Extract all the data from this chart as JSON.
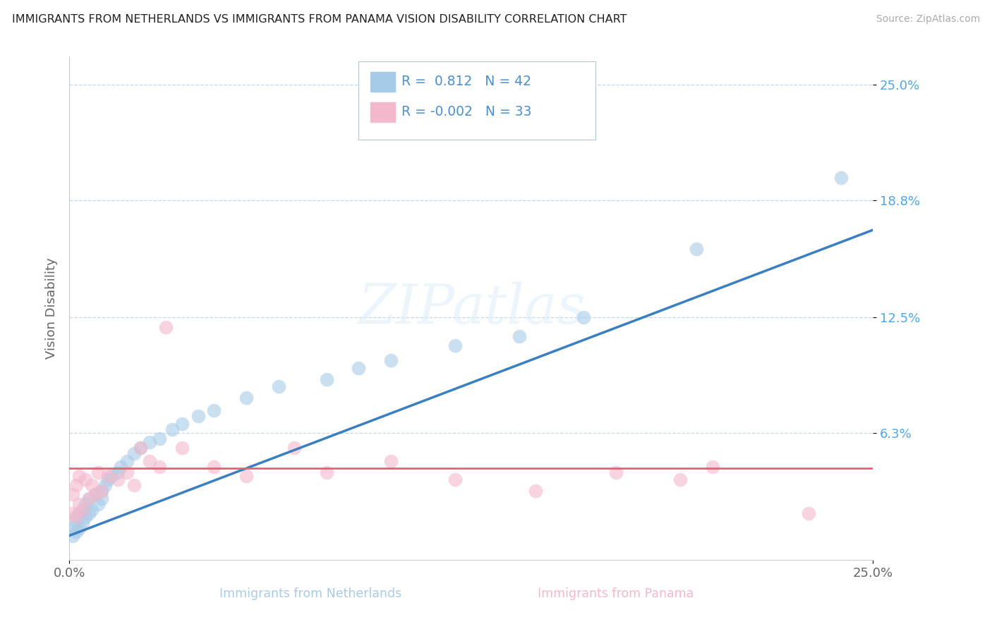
{
  "title": "IMMIGRANTS FROM NETHERLANDS VS IMMIGRANTS FROM PANAMA VISION DISABILITY CORRELATION CHART",
  "source": "Source: ZipAtlas.com",
  "label_netherlands": "Immigrants from Netherlands",
  "label_panama": "Immigrants from Panama",
  "ylabel": "Vision Disability",
  "r_netherlands": 0.812,
  "n_netherlands": 42,
  "r_panama": -0.002,
  "n_panama": 33,
  "color_netherlands": "#a8cce8",
  "color_panama": "#f4b8cc",
  "trendline_netherlands": "#3a7fc1",
  "trendline_panama": "#e8607a",
  "xlim": [
    0.0,
    0.25
  ],
  "ylim": [
    -0.005,
    0.265
  ],
  "yticks": [
    0.063,
    0.125,
    0.188,
    0.25
  ],
  "ytick_labels": [
    "6.3%",
    "12.5%",
    "18.8%",
    "25.0%"
  ],
  "xtick_labels": [
    "0.0%",
    "25.0%"
  ],
  "watermark_text": "ZIPatlas",
  "netherlands_x": [
    0.001,
    0.001,
    0.002,
    0.002,
    0.002,
    0.003,
    0.003,
    0.004,
    0.004,
    0.005,
    0.005,
    0.006,
    0.006,
    0.007,
    0.008,
    0.009,
    0.01,
    0.01,
    0.011,
    0.012,
    0.013,
    0.015,
    0.016,
    0.018,
    0.02,
    0.022,
    0.025,
    0.028,
    0.032,
    0.035,
    0.04,
    0.045,
    0.055,
    0.065,
    0.08,
    0.09,
    0.1,
    0.12,
    0.14,
    0.16,
    0.195,
    0.24
  ],
  "netherlands_y": [
    0.008,
    0.012,
    0.01,
    0.015,
    0.018,
    0.012,
    0.02,
    0.015,
    0.022,
    0.018,
    0.025,
    0.02,
    0.028,
    0.022,
    0.03,
    0.025,
    0.028,
    0.032,
    0.035,
    0.038,
    0.04,
    0.042,
    0.045,
    0.048,
    0.052,
    0.055,
    0.058,
    0.06,
    0.065,
    0.068,
    0.072,
    0.075,
    0.082,
    0.088,
    0.092,
    0.098,
    0.102,
    0.11,
    0.115,
    0.125,
    0.162,
    0.2
  ],
  "panama_x": [
    0.001,
    0.001,
    0.002,
    0.002,
    0.003,
    0.003,
    0.004,
    0.005,
    0.006,
    0.007,
    0.008,
    0.009,
    0.01,
    0.012,
    0.015,
    0.018,
    0.02,
    0.022,
    0.025,
    0.028,
    0.03,
    0.035,
    0.045,
    0.055,
    0.07,
    0.08,
    0.1,
    0.12,
    0.145,
    0.17,
    0.19,
    0.2,
    0.23
  ],
  "panama_y": [
    0.02,
    0.03,
    0.018,
    0.035,
    0.025,
    0.04,
    0.022,
    0.038,
    0.028,
    0.035,
    0.03,
    0.042,
    0.032,
    0.04,
    0.038,
    0.042,
    0.035,
    0.055,
    0.048,
    0.045,
    0.12,
    0.055,
    0.045,
    0.04,
    0.055,
    0.042,
    0.048,
    0.038,
    0.032,
    0.042,
    0.038,
    0.045,
    0.02
  ],
  "panama_trendline_y": 0.044
}
